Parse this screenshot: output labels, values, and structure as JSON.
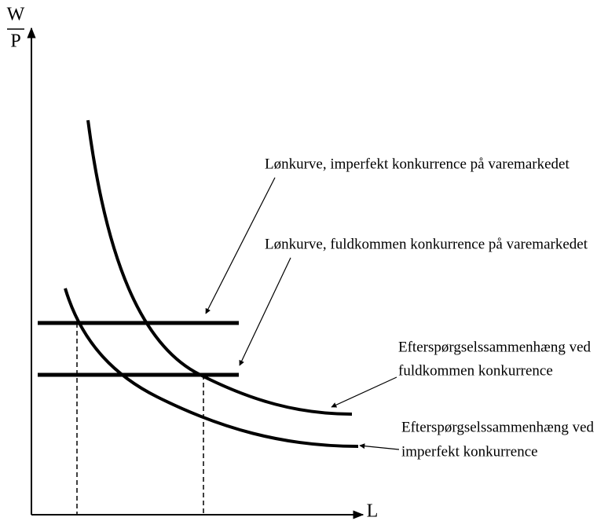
{
  "axes": {
    "y_label_top": "W",
    "y_label_bottom": "P",
    "x_label": "L"
  },
  "labels": [
    {
      "lines": [
        "Lønkurve, imperfekt konkurrence på varemarkedet"
      ]
    },
    {
      "lines": [
        "Lønkurve, fuldkommen konkurrence på varemarkedet"
      ]
    },
    {
      "lines": [
        "Efterspørgselssammenhæng ved",
        "fuldkommen konkurrence"
      ]
    },
    {
      "lines": [
        "Efterspørgselssammenhæng ved",
        "imperfekt konkurrence"
      ]
    }
  ]
}
